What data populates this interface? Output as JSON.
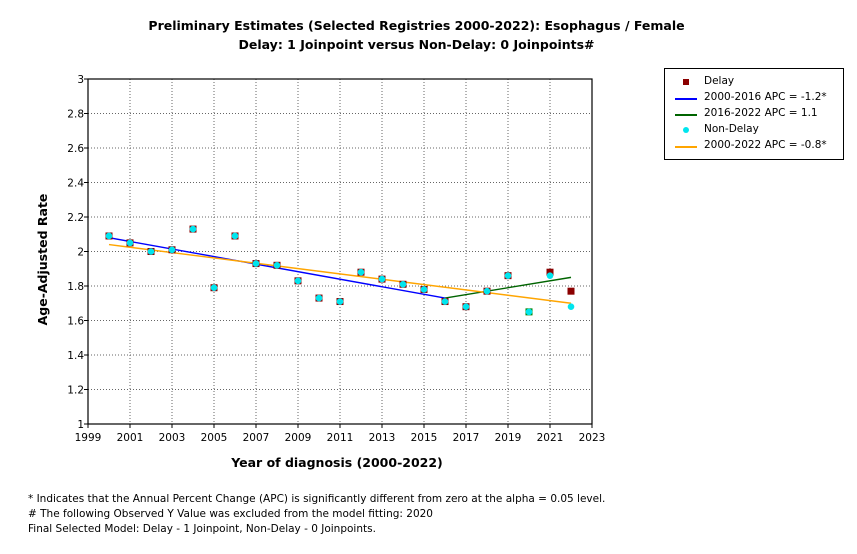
{
  "colors": {
    "delay_points": "#8b0000",
    "delay_seg1": "#0000ff",
    "delay_seg2": "#006400",
    "nondelay_points": "#00e5ee",
    "nondelay_line": "#ffa500",
    "delay_excluded": "#008000"
  },
  "chart_data": {
    "type": "scatter",
    "title": "Preliminary Estimates (Selected Registries 2000-2022): Esophagus / Female",
    "subtitle": "Delay: 1 Joinpoint  versus  Non-Delay: 0 Joinpoints#",
    "xlabel": "Year of diagnosis (2000-2022)",
    "ylabel": "Age-Adjusted Rate",
    "xlim": [
      1999,
      2023
    ],
    "ylim": [
      1,
      3
    ],
    "xticks": [
      "1999",
      "2001",
      "2003",
      "2005",
      "2007",
      "2009",
      "2011",
      "2013",
      "2015",
      "2017",
      "2019",
      "2021",
      "2023"
    ],
    "yticks": [
      "1",
      "1.2",
      "1.4",
      "1.6",
      "1.8",
      "2",
      "2.2",
      "2.4",
      "2.6",
      "2.8",
      "3"
    ],
    "grid": true,
    "legend_position": "right",
    "x": [
      2000,
      2001,
      2002,
      2003,
      2004,
      2005,
      2006,
      2007,
      2008,
      2009,
      2010,
      2011,
      2012,
      2013,
      2014,
      2015,
      2016,
      2017,
      2018,
      2019,
      2020,
      2021,
      2022
    ],
    "series": [
      {
        "name": "Delay",
        "kind": "points",
        "values": [
          2.09,
          2.05,
          2.0,
          2.01,
          2.13,
          1.79,
          2.09,
          1.93,
          1.92,
          1.83,
          1.73,
          1.71,
          1.88,
          1.84,
          1.81,
          1.78,
          1.71,
          1.68,
          1.77,
          1.86,
          1.65,
          1.88,
          1.77
        ],
        "excluded_x": [
          2020
        ]
      },
      {
        "name": "Non-Delay",
        "kind": "points",
        "values": [
          2.09,
          2.05,
          2.0,
          2.01,
          2.13,
          1.79,
          2.09,
          1.93,
          1.92,
          1.83,
          1.73,
          1.71,
          1.88,
          1.84,
          1.81,
          1.78,
          1.71,
          1.68,
          1.77,
          1.86,
          1.65,
          1.86,
          1.68
        ]
      },
      {
        "name": "2000-2016 APC  = -1.2*",
        "kind": "line",
        "x": [
          2000,
          2016
        ],
        "values": [
          2.08,
          1.73
        ]
      },
      {
        "name": "2016-2022 APC  =  1.1",
        "kind": "line",
        "x": [
          2016,
          2022
        ],
        "values": [
          1.73,
          1.85
        ]
      },
      {
        "name": "2000-2022 APC  = -0.8*",
        "kind": "line",
        "x": [
          2000,
          2022
        ],
        "values": [
          2.04,
          1.7
        ]
      }
    ]
  },
  "legend": [
    {
      "label": "Delay"
    },
    {
      "label": "2000-2016 APC  = -1.2*"
    },
    {
      "label": "2016-2022 APC  =  1.1"
    },
    {
      "label": "Non-Delay"
    },
    {
      "label": "2000-2022 APC  = -0.8*"
    }
  ],
  "footnotes": [
    "* Indicates that the Annual Percent Change (APC) is significantly different from zero at the alpha = 0.05 level.",
    " # The following Observed Y Value was excluded from the model fitting: 2020",
    "Final Selected Model: Delay - 1 Joinpoint, Non-Delay - 0 Joinpoints."
  ]
}
